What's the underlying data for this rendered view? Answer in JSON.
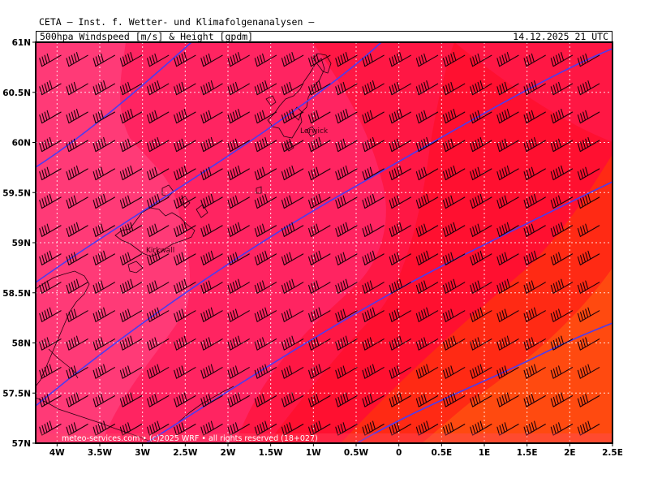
{
  "header": {
    "institute": "CETA — Inst. f. Wetter- und Klimafolgenanalysen —",
    "title": "500hpa Windspeed [m/s] & Height [gpdm]",
    "valid_time": "14.12.2025 21 UTC"
  },
  "map": {
    "lon_range": [
      -4.25,
      2.5
    ],
    "lat_range": [
      57,
      61
    ],
    "lat_ticks": [
      "61N",
      "60.5N",
      "60N",
      "59.5N",
      "59N",
      "58.5N",
      "58N",
      "57.5N",
      "57N"
    ],
    "lon_ticks": [
      "4W",
      "3.5W",
      "3W",
      "2.5W",
      "2W",
      "1.5W",
      "1W",
      "0.5W",
      "0",
      "0.5E",
      "1E",
      "1.5E",
      "2E",
      "2.5E"
    ],
    "cities": [
      {
        "name": "Kirkwall",
        "lon": -2.96,
        "lat": 58.98
      },
      {
        "name": "Lerwick",
        "lon": -1.15,
        "lat": 60.15
      }
    ],
    "copyright": "meteo-services.com • (c)2025 WRF • all rights reserved (18+027)",
    "colors": {
      "band1": "#ff3a77",
      "band2": "#ff2461",
      "band3": "#ff1744",
      "band4": "#ff1030",
      "band5": "#ff2a14",
      "band6": "#ff4a10",
      "contour": "#4b3cf0",
      "barb": "#1a0008",
      "coast": "#2a0010"
    }
  }
}
